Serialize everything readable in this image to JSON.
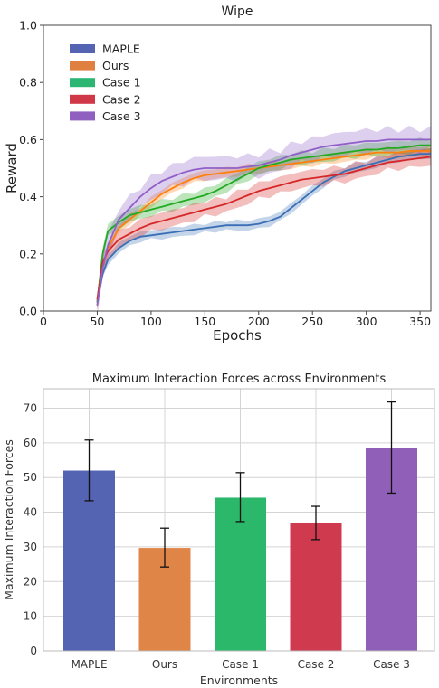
{
  "chart_data": [
    {
      "type": "line",
      "title": "Wipe",
      "xlabel": "Epochs",
      "ylabel": "Reward",
      "xlim": [
        0,
        360
      ],
      "ylim": [
        0.0,
        1.0
      ],
      "xticks": [
        "0",
        "50",
        "100",
        "150",
        "200",
        "250",
        "300",
        "350"
      ],
      "yticks": [
        "0.0",
        "0.2",
        "0.4",
        "0.6",
        "0.8",
        "1.0"
      ],
      "grid": false,
      "legend_position": "upper-left",
      "series": [
        {
          "name": "MAPLE",
          "color": "#3a6fb5",
          "legend_color": "#5563b3",
          "x": [
            50,
            55,
            60,
            70,
            80,
            90,
            100,
            110,
            120,
            130,
            140,
            150,
            160,
            170,
            180,
            190,
            200,
            210,
            220,
            230,
            240,
            250,
            260,
            270,
            280,
            290,
            300,
            310,
            320,
            330,
            340,
            350,
            360
          ],
          "y": [
            0.03,
            0.13,
            0.18,
            0.22,
            0.245,
            0.26,
            0.265,
            0.27,
            0.275,
            0.28,
            0.285,
            0.29,
            0.295,
            0.3,
            0.3,
            0.3,
            0.305,
            0.315,
            0.33,
            0.36,
            0.39,
            0.42,
            0.45,
            0.47,
            0.49,
            0.5,
            0.51,
            0.52,
            0.53,
            0.54,
            0.545,
            0.55,
            0.55
          ],
          "band": 0.015
        },
        {
          "name": "Ours",
          "color": "#ff7f0e",
          "legend_color": "#e08040",
          "x": [
            50,
            55,
            60,
            70,
            80,
            90,
            100,
            110,
            120,
            130,
            140,
            150,
            160,
            170,
            180,
            190,
            200,
            210,
            220,
            230,
            240,
            250,
            260,
            270,
            280,
            290,
            300,
            310,
            320,
            330,
            340,
            350,
            360
          ],
          "y": [
            0.02,
            0.15,
            0.22,
            0.29,
            0.32,
            0.35,
            0.38,
            0.41,
            0.43,
            0.45,
            0.465,
            0.475,
            0.48,
            0.485,
            0.49,
            0.495,
            0.5,
            0.505,
            0.51,
            0.515,
            0.52,
            0.525,
            0.53,
            0.535,
            0.54,
            0.545,
            0.55,
            0.555,
            0.555,
            0.555,
            0.56,
            0.56,
            0.56
          ],
          "band": 0.015
        },
        {
          "name": "Case 1",
          "color": "#22aa22",
          "legend_color": "#2bb673",
          "x": [
            50,
            55,
            60,
            70,
            80,
            90,
            100,
            110,
            120,
            130,
            140,
            150,
            160,
            170,
            180,
            190,
            200,
            210,
            220,
            230,
            240,
            250,
            260,
            270,
            280,
            290,
            300,
            310,
            320,
            330,
            340,
            350,
            360
          ],
          "y": [
            0.03,
            0.2,
            0.28,
            0.31,
            0.335,
            0.345,
            0.355,
            0.365,
            0.375,
            0.385,
            0.395,
            0.405,
            0.42,
            0.44,
            0.46,
            0.48,
            0.5,
            0.51,
            0.52,
            0.53,
            0.535,
            0.54,
            0.545,
            0.55,
            0.555,
            0.56,
            0.565,
            0.565,
            0.57,
            0.57,
            0.575,
            0.58,
            0.58
          ],
          "band": 0.02
        },
        {
          "name": "Case 2",
          "color": "#d62728",
          "legend_color": "#d03848",
          "x": [
            50,
            55,
            60,
            70,
            80,
            90,
            100,
            110,
            120,
            130,
            140,
            150,
            160,
            170,
            180,
            190,
            200,
            210,
            220,
            230,
            240,
            250,
            260,
            270,
            280,
            290,
            300,
            310,
            320,
            330,
            340,
            350,
            360
          ],
          "y": [
            0.04,
            0.17,
            0.21,
            0.25,
            0.27,
            0.29,
            0.305,
            0.315,
            0.325,
            0.335,
            0.345,
            0.355,
            0.365,
            0.375,
            0.39,
            0.405,
            0.42,
            0.43,
            0.44,
            0.45,
            0.46,
            0.465,
            0.47,
            0.475,
            0.48,
            0.49,
            0.5,
            0.51,
            0.52,
            0.525,
            0.53,
            0.535,
            0.54
          ],
          "band": 0.025
        },
        {
          "name": "Case 3",
          "color": "#9060c8",
          "legend_color": "#9060c0",
          "x": [
            50,
            55,
            60,
            70,
            80,
            90,
            100,
            110,
            120,
            130,
            140,
            150,
            160,
            170,
            180,
            190,
            200,
            210,
            220,
            230,
            240,
            250,
            260,
            270,
            280,
            290,
            300,
            310,
            320,
            330,
            340,
            350,
            360
          ],
          "y": [
            0.02,
            0.15,
            0.23,
            0.32,
            0.36,
            0.4,
            0.43,
            0.455,
            0.47,
            0.485,
            0.495,
            0.5,
            0.5,
            0.5,
            0.5,
            0.505,
            0.51,
            0.52,
            0.53,
            0.545,
            0.555,
            0.565,
            0.575,
            0.58,
            0.585,
            0.59,
            0.595,
            0.595,
            0.6,
            0.6,
            0.6,
            0.6,
            0.6
          ],
          "band": 0.035
        }
      ]
    },
    {
      "type": "bar",
      "title": "Maximum Interaction Forces across Environments",
      "xlabel": "Environments",
      "ylabel": "Maximum Interaction Forces",
      "ylim": [
        0,
        75.6
      ],
      "yticks": [
        "0",
        "10",
        "20",
        "30",
        "40",
        "50",
        "60",
        "70"
      ],
      "grid": true,
      "categories": [
        "MAPLE",
        "Ours",
        "Case 1",
        "Case 2",
        "Case 3"
      ],
      "values": [
        52.0,
        29.7,
        44.2,
        36.9,
        58.6
      ],
      "errors_low": [
        43.3,
        24.2,
        37.3,
        32.1,
        45.5
      ],
      "errors_high": [
        60.8,
        35.4,
        51.4,
        41.7,
        71.8
      ],
      "colors": [
        "#5563b3",
        "#e08548",
        "#2bb86a",
        "#d03a4f",
        "#9060b8"
      ]
    }
  ]
}
